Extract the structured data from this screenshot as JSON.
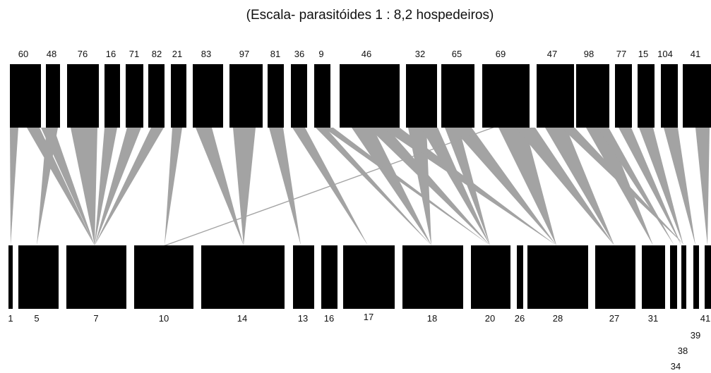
{
  "title": "(Escala- parasitóides 1 : 8,2 hospedeiros)",
  "colors": {
    "box": "#000000",
    "link": "#a3a3a3",
    "background": "#ffffff"
  },
  "top_nodes": [
    {
      "id": "60",
      "label": "60"
    },
    {
      "id": "48",
      "label": "48"
    },
    {
      "id": "76",
      "label": "76"
    },
    {
      "id": "16",
      "label": "16"
    },
    {
      "id": "71",
      "label": "71"
    },
    {
      "id": "82",
      "label": "82"
    },
    {
      "id": "21",
      "label": "21"
    },
    {
      "id": "83",
      "label": "83"
    },
    {
      "id": "97",
      "label": "97"
    },
    {
      "id": "81",
      "label": "81"
    },
    {
      "id": "36",
      "label": "36"
    },
    {
      "id": "9",
      "label": "9"
    },
    {
      "id": "46",
      "label": "46"
    },
    {
      "id": "32",
      "label": "32"
    },
    {
      "id": "65",
      "label": "65"
    },
    {
      "id": "69",
      "label": "69"
    },
    {
      "id": "47",
      "label": "47"
    },
    {
      "id": "98",
      "label": "98"
    },
    {
      "id": "77",
      "label": "77"
    },
    {
      "id": "15",
      "label": "15"
    },
    {
      "id": "104",
      "label": "104"
    },
    {
      "id": "41",
      "label": "41"
    }
  ],
  "bottom_nodes": [
    {
      "id": "1",
      "label": "1"
    },
    {
      "id": "5",
      "label": "5"
    },
    {
      "id": "7",
      "label": "7"
    },
    {
      "id": "10",
      "label": "10"
    },
    {
      "id": "14",
      "label": "14"
    },
    {
      "id": "13",
      "label": "13"
    },
    {
      "id": "16",
      "label": "16"
    },
    {
      "id": "17",
      "label": "17"
    },
    {
      "id": "18",
      "label": "18"
    },
    {
      "id": "20",
      "label": "20"
    },
    {
      "id": "26",
      "label": "26"
    },
    {
      "id": "28",
      "label": "28"
    },
    {
      "id": "27",
      "label": "27"
    },
    {
      "id": "31",
      "label": "31"
    },
    {
      "id": "34",
      "label": "34"
    },
    {
      "id": "38",
      "label": "38"
    },
    {
      "id": "39",
      "label": "39"
    },
    {
      "id": "41",
      "label": "41"
    }
  ],
  "links": [
    {
      "from": "60",
      "to": "1"
    },
    {
      "from": "60",
      "to": "7"
    },
    {
      "from": "48",
      "to": "5"
    },
    {
      "from": "48",
      "to": "7"
    },
    {
      "from": "76",
      "to": "7"
    },
    {
      "from": "16",
      "to": "7"
    },
    {
      "from": "71",
      "to": "7"
    },
    {
      "from": "82",
      "to": "7"
    },
    {
      "from": "21",
      "to": "10"
    },
    {
      "from": "83",
      "to": "14"
    },
    {
      "from": "97",
      "to": "14"
    },
    {
      "from": "81",
      "to": "13"
    },
    {
      "from": "36",
      "to": "17"
    },
    {
      "from": "9",
      "to": "18"
    },
    {
      "from": "9",
      "to": "20"
    },
    {
      "from": "46",
      "to": "18"
    },
    {
      "from": "46",
      "to": "20"
    },
    {
      "from": "46",
      "to": "28"
    },
    {
      "from": "32",
      "to": "18"
    },
    {
      "from": "32",
      "to": "20"
    },
    {
      "from": "65",
      "to": "28"
    },
    {
      "from": "65",
      "to": "20"
    },
    {
      "from": "69",
      "to": "28"
    },
    {
      "from": "69",
      "to": "27"
    },
    {
      "from": "47",
      "to": "27"
    },
    {
      "from": "47",
      "to": "38"
    },
    {
      "from": "98",
      "to": "31"
    },
    {
      "from": "98",
      "to": "34"
    },
    {
      "from": "77",
      "to": "38"
    },
    {
      "from": "15",
      "to": "38"
    },
    {
      "from": "104",
      "to": "39"
    },
    {
      "from": "41",
      "to": "41"
    },
    {
      "from": "10",
      "to": "10",
      "note": ""
    }
  ]
}
